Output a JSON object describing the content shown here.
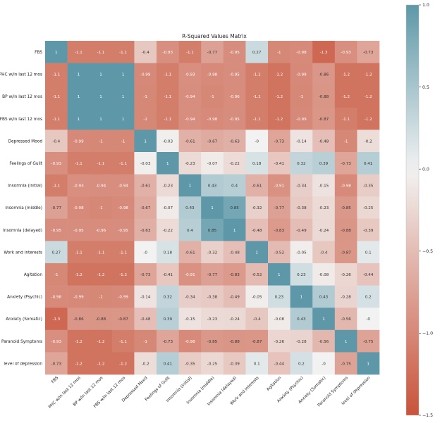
{
  "chart_data": {
    "type": "heatmap",
    "title": "R-Squared Values Matrix",
    "xlabel": "",
    "ylabel": "",
    "labels": [
      "FBS",
      "PHC w/in last 12 mos",
      "BP w/in last 12 mos",
      "FBS w/in last 12 mos",
      "Depressed Mood",
      "Feelings of Guilt",
      "Insomnia (initial)",
      "Insomnia (middle)",
      "Insomnia (delayed)",
      "Work and Interests",
      "Agitation",
      "Anxiety (Psychic)",
      "Anxiety (Somatic)",
      "Paranoid Symptoms",
      "level of depression"
    ],
    "cells": [
      [
        "1",
        "-1.1",
        "-1.1",
        "-1.1",
        "-0.4",
        "-0.93",
        "-1.1",
        "-0.77",
        "-0.95",
        "0.27",
        "-1",
        "-0.98",
        "-1.3",
        "-0.93",
        "-0.73"
      ],
      [
        "-1.1",
        "1",
        "1",
        "1",
        "-0.99",
        "-1.1",
        "-0.93",
        "-0.98",
        "-0.95",
        "-1.1",
        "-1.2",
        "-0.99",
        "-0.86",
        "-1.2",
        "-1.2"
      ],
      [
        "-1.1",
        "1",
        "1",
        "1",
        "-1",
        "-1.1",
        "-0.94",
        "-1",
        "-0.96",
        "-1.1",
        "-1.2",
        "-1",
        "-0.88",
        "-1.2",
        "-1.2"
      ],
      [
        "-1.1",
        "1",
        "1",
        "1",
        "-1",
        "-1.1",
        "-0.94",
        "-0.98",
        "-0.95",
        "-1.1",
        "-1.2",
        "-0.99",
        "-0.87",
        "-1.1",
        "-1.2"
      ],
      [
        "-0.4",
        "-0.99",
        "-1",
        "-1",
        "1",
        "-0.03",
        "-0.61",
        "-0.67",
        "-0.63",
        "-0",
        "-0.73",
        "-0.14",
        "-0.48",
        "-1",
        "-0.2"
      ],
      [
        "-0.93",
        "-1.1",
        "-1.1",
        "-1.1",
        "-0.03",
        "1",
        "-0.23",
        "-0.07",
        "-0.22",
        "0.18",
        "-0.41",
        "0.32",
        "0.39",
        "-0.73",
        "0.41"
      ],
      [
        "-1.1",
        "-0.93",
        "-0.94",
        "-0.94",
        "-0.61",
        "-0.23",
        "1",
        "0.43",
        "0.4",
        "-0.61",
        "-0.91",
        "-0.34",
        "-0.15",
        "-0.98",
        "-0.35"
      ],
      [
        "-0.77",
        "-0.98",
        "-1",
        "-0.98",
        "-0.67",
        "-0.07",
        "0.43",
        "1",
        "0.85",
        "-0.32",
        "-0.77",
        "-0.38",
        "-0.23",
        "-0.85",
        "-0.25"
      ],
      [
        "-0.95",
        "-0.95",
        "-0.96",
        "-0.95",
        "-0.63",
        "-0.22",
        "0.4",
        "0.85",
        "1",
        "-0.48",
        "-0.83",
        "-0.49",
        "-0.24",
        "-0.88",
        "-0.39"
      ],
      [
        "0.27",
        "-1.1",
        "-1.1",
        "-1.1",
        "-0",
        "0.18",
        "-0.61",
        "-0.32",
        "-0.48",
        "1",
        "-0.52",
        "-0.05",
        "-0.4",
        "-0.87",
        "0.1"
      ],
      [
        "-1",
        "-1.2",
        "-1.2",
        "-1.2",
        "-0.73",
        "-0.41",
        "-0.91",
        "-0.77",
        "-0.83",
        "-0.52",
        "1",
        "0.23",
        "-0.08",
        "-0.26",
        "-0.44"
      ],
      [
        "-0.98",
        "-0.99",
        "-1",
        "-0.99",
        "-0.14",
        "0.32",
        "-0.34",
        "-0.38",
        "-0.49",
        "-0.05",
        "0.23",
        "1",
        "0.43",
        "-0.28",
        "0.2"
      ],
      [
        "-1.3",
        "-0.86",
        "-0.88",
        "-0.87",
        "-0.48",
        "0.39",
        "-0.15",
        "-0.23",
        "-0.24",
        "-0.4",
        "-0.08",
        "0.43",
        "1",
        "-0.56",
        "-0"
      ],
      [
        "-0.93",
        "-1.2",
        "-1.2",
        "-1.1",
        "-1",
        "-0.73",
        "-0.98",
        "-0.85",
        "-0.88",
        "-0.87",
        "-0.26",
        "-0.28",
        "-0.56",
        "1",
        "-0.75"
      ],
      [
        "-0.73",
        "-1.2",
        "-1.2",
        "-1.2",
        "-0.2",
        "0.41",
        "-0.35",
        "-0.25",
        "-0.39",
        "0.1",
        "-0.44",
        "0.2",
        "-0",
        "-0.75",
        "1"
      ]
    ],
    "colorbar": {
      "range": [
        -1.5,
        1.0
      ],
      "ticks": [
        "−1.5",
        "−1.0",
        "−0.5",
        "0.0",
        "0.5",
        "1.0"
      ],
      "tick_values": [
        -1.5,
        -1.0,
        -0.5,
        0.0,
        0.5,
        1.0
      ],
      "colors": {
        "low": "#c8533a",
        "mid": "#f2f2f2",
        "high": "#5e98a8"
      }
    },
    "grid": false,
    "legend": "right"
  }
}
